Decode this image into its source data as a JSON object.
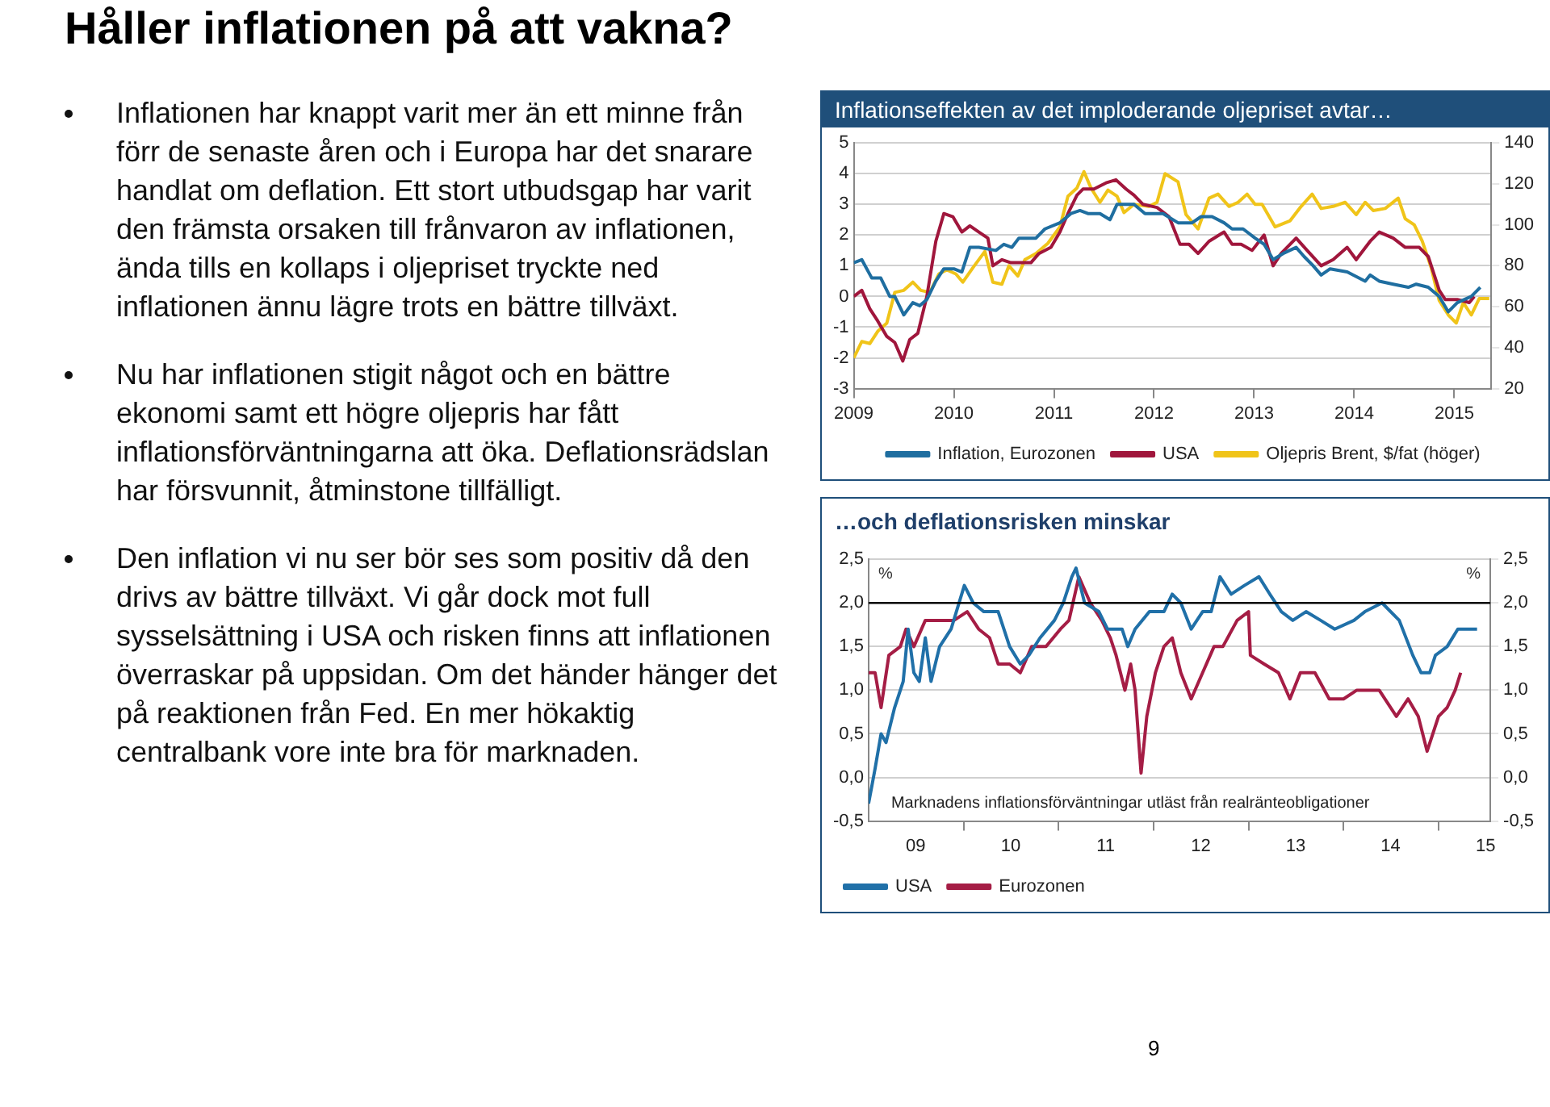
{
  "chart_data": [
    {
      "type": "other",
      "title": "Håller inflationen på att vakna?",
      "annotations": [
        "Inflationen har knappt varit mer än ett minne från förr de senaste åren och i Europa har det snarare handlat om deflation. Ett stort utbudsgap har varit den främsta orsaken till frånvaron av inflationen, ända tills en kollaps i oljepriset tryckte ned inflationen ännu lägre trots en bättre tillväxt.",
        "Nu har inflationen stigit något och en bättre ekonomi samt ett högre oljepris har fått inflationsförväntningarna att öka. Deflationsrädslan har försvunnit, åtminstone tillfälligt.",
        "Den inflation vi nu ser bör ses som positiv då den drivs av bättre tillväxt. Vi går dock mot full sysselsättning i USA och risken finns att inflationen överraskar på uppsidan. Om det händer hänger det på reaktionen från Fed. En mer hökaktig centralbank vore inte bra för marknaden.",
        "9"
      ]
    },
    {
      "type": "line",
      "title": "Inflationseffekten av det imploderande oljepriset avtar…",
      "xlim": [
        2009,
        2015.37
      ],
      "xticks": [
        2009,
        2010,
        2011,
        2012,
        2013,
        2014,
        2015
      ],
      "ylim": [
        -3,
        5
      ],
      "yticks": [
        -3,
        -2,
        -1,
        0,
        1,
        2,
        3,
        4,
        5
      ],
      "y2lim": [
        20,
        140
      ],
      "y2ticks": [
        20,
        40,
        60,
        80,
        100,
        120,
        140
      ],
      "grid": "y",
      "legend": "bottom",
      "marker": "none",
      "series": [
        {
          "name": "Inflation, Eurozonen",
          "color": "#1f6ea0",
          "x": [
            2009.0,
            2009.08,
            2009.18,
            2009.27,
            2009.36,
            2009.41,
            2009.5,
            2009.59,
            2009.66,
            2009.73,
            2009.82,
            2009.9,
            2010.0,
            2010.08,
            2010.16,
            2010.25,
            2010.42,
            2010.5,
            2010.58,
            2010.65,
            2010.82,
            2010.91,
            2011.06,
            2011.17,
            2011.26,
            2011.34,
            2011.46,
            2011.56,
            2011.63,
            2011.8,
            2011.91,
            2012.09,
            2012.24,
            2012.38,
            2012.47,
            2012.58,
            2012.7,
            2012.78,
            2012.89,
            2013.01,
            2013.1,
            2013.19,
            2013.29,
            2013.42,
            2013.5,
            2013.59,
            2013.67,
            2013.76,
            2013.93,
            2014.11,
            2014.16,
            2014.25,
            2014.39,
            2014.54,
            2014.62,
            2014.74,
            2014.85,
            2014.94,
            2015.03,
            2015.17,
            2015.26
          ],
          "values": [
            1.1,
            1.2,
            0.6,
            0.6,
            0.0,
            0.0,
            -0.6,
            -0.2,
            -0.3,
            -0.1,
            0.5,
            0.9,
            0.9,
            0.8,
            1.6,
            1.6,
            1.5,
            1.7,
            1.6,
            1.9,
            1.9,
            2.2,
            2.4,
            2.7,
            2.8,
            2.7,
            2.7,
            2.5,
            3.0,
            3.0,
            2.7,
            2.7,
            2.4,
            2.4,
            2.6,
            2.6,
            2.4,
            2.2,
            2.2,
            1.9,
            1.7,
            1.2,
            1.4,
            1.6,
            1.3,
            1.0,
            0.7,
            0.9,
            0.8,
            0.5,
            0.7,
            0.5,
            0.4,
            0.3,
            0.4,
            0.3,
            0.0,
            -0.5,
            -0.2,
            0.0,
            0.3
          ]
        },
        {
          "name": "USA",
          "color": "#a0163c",
          "x": [
            2009.0,
            2009.08,
            2009.16,
            2009.24,
            2009.33,
            2009.41,
            2009.49,
            2009.56,
            2009.64,
            2009.73,
            2009.82,
            2009.9,
            2009.99,
            2010.08,
            2010.16,
            2010.25,
            2010.34,
            2010.39,
            2010.48,
            2010.57,
            2010.65,
            2010.77,
            2010.85,
            2010.97,
            2011.06,
            2011.14,
            2011.23,
            2011.29,
            2011.4,
            2011.52,
            2011.62,
            2011.72,
            2011.8,
            2011.89,
            2012.03,
            2012.15,
            2012.26,
            2012.35,
            2012.44,
            2012.55,
            2012.7,
            2012.78,
            2012.87,
            2012.98,
            2013.1,
            2013.19,
            2013.27,
            2013.42,
            2013.53,
            2013.67,
            2013.79,
            2013.93,
            2014.02,
            2014.16,
            2014.25,
            2014.39,
            2014.51,
            2014.65,
            2014.74,
            2014.85,
            2014.91,
            2015.03,
            2015.15,
            2015.2
          ],
          "values": [
            0.0,
            0.2,
            -0.4,
            -0.8,
            -1.3,
            -1.5,
            -2.1,
            -1.4,
            -1.2,
            0.0,
            1.8,
            2.7,
            2.6,
            2.1,
            2.3,
            2.1,
            1.9,
            1.0,
            1.2,
            1.1,
            1.1,
            1.1,
            1.4,
            1.6,
            2.1,
            2.7,
            3.3,
            3.5,
            3.5,
            3.7,
            3.8,
            3.5,
            3.3,
            3.0,
            2.9,
            2.6,
            1.7,
            1.7,
            1.4,
            1.8,
            2.1,
            1.7,
            1.7,
            1.5,
            2.0,
            1.0,
            1.4,
            1.9,
            1.5,
            1.0,
            1.2,
            1.6,
            1.2,
            1.8,
            2.1,
            1.9,
            1.6,
            1.6,
            1.3,
            0.2,
            -0.1,
            -0.1,
            -0.2,
            0.0
          ]
        },
        {
          "name": "Oljepris Brent, $/fat (höger)",
          "color": "#f0c419",
          "axis": "y2",
          "x": [
            2009.0,
            2009.08,
            2009.16,
            2009.24,
            2009.33,
            2009.41,
            2009.5,
            2009.59,
            2009.67,
            2009.76,
            2009.85,
            2009.93,
            2010.02,
            2010.09,
            2010.19,
            2010.31,
            2010.39,
            2010.48,
            2010.55,
            2010.64,
            2010.71,
            2010.82,
            2010.94,
            2011.06,
            2011.14,
            2011.23,
            2011.3,
            2011.37,
            2011.46,
            2011.54,
            2011.63,
            2011.7,
            2011.8,
            2011.95,
            2012.03,
            2012.11,
            2012.24,
            2012.32,
            2012.44,
            2012.55,
            2012.64,
            2012.75,
            2012.84,
            2012.93,
            2013.01,
            2013.08,
            2013.21,
            2013.36,
            2013.47,
            2013.58,
            2013.67,
            2013.79,
            2013.91,
            2014.02,
            2014.11,
            2014.19,
            2014.31,
            2014.44,
            2014.51,
            2014.6,
            2014.68,
            2014.77,
            2014.85,
            2014.94,
            2015.02,
            2015.09,
            2015.17,
            2015.25,
            2015.35
          ],
          "values": [
            35,
            43,
            42,
            48,
            52,
            67,
            68,
            72,
            68,
            67,
            76,
            78,
            76,
            72,
            79,
            87,
            72,
            71,
            80,
            75,
            83,
            86,
            91,
            99,
            114,
            118,
            126,
            118,
            111,
            117,
            114,
            106,
            110,
            109,
            111,
            125,
            121,
            105,
            98,
            113,
            115,
            109,
            111,
            115,
            110,
            110,
            99,
            102,
            109,
            115,
            108,
            109,
            111,
            105,
            111,
            107,
            108,
            113,
            103,
            100,
            92,
            79,
            63,
            56,
            52,
            62,
            56,
            64,
            64
          ]
        }
      ]
    },
    {
      "type": "line",
      "title": "…och deflationsrisken minskar",
      "ylabel": "%",
      "y2label": "%",
      "xlim": [
        "2009-01-01",
        "2015-07-19"
      ],
      "xticks": [
        {
          "value": "2009-07-01",
          "label": "09"
        },
        {
          "value": "2010-01-01",
          "label": null
        },
        {
          "value": "2010-07-01",
          "label": "10"
        },
        {
          "value": "2011-01-01",
          "label": null
        },
        {
          "value": "2011-07-01",
          "label": "11"
        },
        {
          "value": "2012-01-01",
          "label": null
        },
        {
          "value": "2012-07-01",
          "label": "12"
        },
        {
          "value": "2013-01-01",
          "label": null
        },
        {
          "value": "2013-07-01",
          "label": "13"
        },
        {
          "value": "2014-01-01",
          "label": null
        },
        {
          "value": "2014-07-01",
          "label": "14"
        },
        {
          "value": "2015-01-01",
          "label": null
        },
        {
          "value": "2015-07-01",
          "label": "15"
        }
      ],
      "ylim": [
        -0.5,
        2.5
      ],
      "yticks": [
        {
          "value": -0.5,
          "label": "-0,5"
        },
        {
          "value": 0,
          "label": "0,0"
        },
        {
          "value": 0.5,
          "label": "0,5"
        },
        {
          "value": 1,
          "label": "1,0"
        },
        {
          "value": 1.5,
          "label": "1,5"
        },
        {
          "value": 2,
          "label": "2,0"
        },
        {
          "value": 2.5,
          "label": "2,5"
        }
      ],
      "y2lim": [
        -0.5,
        2.5
      ],
      "y2ticks": [
        {
          "value": -0.5,
          "label": "-0,5"
        },
        {
          "value": 0,
          "label": "0,0"
        },
        {
          "value": 0.5,
          "label": "0,5"
        },
        {
          "value": 1,
          "label": "1,0"
        },
        {
          "value": 1.5,
          "label": "1,5"
        },
        {
          "value": 2,
          "label": "2,0"
        },
        {
          "value": 2.5,
          "label": "2,5"
        }
      ],
      "grid": "y",
      "legend": "bottom left",
      "marker": "none",
      "ref_lines": [
        {
          "axis": "y",
          "value": 2,
          "color": "#000000"
        }
      ],
      "annotations": [
        "Marknadens inflationsförväntningar utläst från realränteobligationer"
      ],
      "series": [
        {
          "name": "USA",
          "color": "#2070a8",
          "x": [
            "2009-01-01",
            "2009-01-26",
            "2009-02-18",
            "2009-03-09",
            "2009-04-11",
            "2009-05-14",
            "2009-06-02",
            "2009-06-24",
            "2009-07-15",
            "2009-08-07",
            "2009-08-29",
            "2009-10-01",
            "2009-11-14",
            "2010-01-04",
            "2010-02-07",
            "2010-03-20",
            "2010-05-14",
            "2010-06-27",
            "2010-08-07",
            "2010-09-09",
            "2010-10-22",
            "2010-12-16",
            "2011-01-19",
            "2011-02-21",
            "2011-03-09",
            "2011-04-11",
            "2011-06-05",
            "2011-07-08",
            "2011-09-02",
            "2011-09-24",
            "2011-10-22",
            "2011-12-16",
            "2012-02-10",
            "2012-03-13",
            "2012-04-15",
            "2012-05-25",
            "2012-07-08",
            "2012-08-10",
            "2012-09-13",
            "2012-10-26",
            "2012-12-16",
            "2013-02-10",
            "2013-03-24",
            "2013-05-07",
            "2013-06-20",
            "2013-08-10",
            "2013-10-05",
            "2013-11-28",
            "2014-02-10",
            "2014-03-24",
            "2014-05-29",
            "2014-08-03",
            "2014-09-24",
            "2014-10-26",
            "2014-11-28",
            "2014-12-20",
            "2015-02-03",
            "2015-03-16",
            "2015-04-19",
            "2015-05-29"
          ],
          "values": [
            -0.3,
            0.1,
            0.5,
            0.4,
            0.8,
            1.1,
            1.7,
            1.2,
            1.1,
            1.6,
            1.1,
            1.5,
            1.7,
            2.2,
            2.0,
            1.9,
            1.9,
            1.5,
            1.3,
            1.4,
            1.6,
            1.8,
            2.0,
            2.3,
            2.4,
            2.0,
            1.9,
            1.7,
            1.7,
            1.5,
            1.7,
            1.9,
            1.9,
            2.1,
            2.0,
            1.7,
            1.9,
            1.9,
            2.3,
            2.1,
            2.2,
            2.3,
            2.1,
            1.9,
            1.8,
            1.9,
            1.8,
            1.7,
            1.8,
            1.9,
            2.0,
            1.8,
            1.4,
            1.2,
            1.2,
            1.4,
            1.5,
            1.7,
            1.7,
            1.7
          ]
        },
        {
          "name": "Eurozonen",
          "color": "#a51d45",
          "x": [
            "2009-01-01",
            "2009-01-26",
            "2009-02-18",
            "2009-03-20",
            "2009-05-03",
            "2009-05-25",
            "2009-06-24",
            "2009-08-07",
            "2009-10-01",
            "2009-11-25",
            "2010-01-15",
            "2010-02-28",
            "2010-04-11",
            "2010-05-14",
            "2010-06-27",
            "2010-08-07",
            "2010-09-20",
            "2010-11-14",
            "2011-01-08",
            "2011-02-10",
            "2011-03-20",
            "2011-05-03",
            "2011-06-16",
            "2011-07-19",
            "2011-08-10",
            "2011-09-13",
            "2011-10-05",
            "2011-10-22",
            "2011-11-14",
            "2011-12-06",
            "2012-01-08",
            "2012-02-10",
            "2012-03-13",
            "2012-04-15",
            "2012-05-25",
            "2012-07-08",
            "2012-08-21",
            "2012-09-24",
            "2012-11-18",
            "2013-01-01",
            "2013-01-08",
            "2013-03-02",
            "2013-04-26",
            "2013-06-09",
            "2013-07-19",
            "2013-09-13",
            "2013-11-07",
            "2014-01-01",
            "2014-02-21",
            "2014-05-18",
            "2014-07-23",
            "2014-09-06",
            "2014-10-15",
            "2014-11-18",
            "2015-01-01",
            "2015-02-03",
            "2015-03-06",
            "2015-03-27"
          ],
          "values": [
            1.2,
            1.2,
            0.8,
            1.4,
            1.5,
            1.7,
            1.5,
            1.8,
            1.8,
            1.8,
            1.9,
            1.7,
            1.6,
            1.3,
            1.3,
            1.2,
            1.5,
            1.5,
            1.7,
            1.8,
            2.3,
            2.0,
            1.8,
            1.6,
            1.4,
            1.0,
            1.3,
            1.0,
            0.05,
            0.7,
            1.2,
            1.5,
            1.6,
            1.2,
            0.9,
            1.2,
            1.5,
            1.5,
            1.8,
            1.9,
            1.4,
            1.3,
            1.2,
            0.9,
            1.2,
            1.2,
            0.9,
            0.9,
            1.0,
            1.0,
            0.7,
            0.9,
            0.7,
            0.3,
            0.7,
            0.8,
            1.0,
            1.2
          ]
        }
      ]
    }
  ]
}
